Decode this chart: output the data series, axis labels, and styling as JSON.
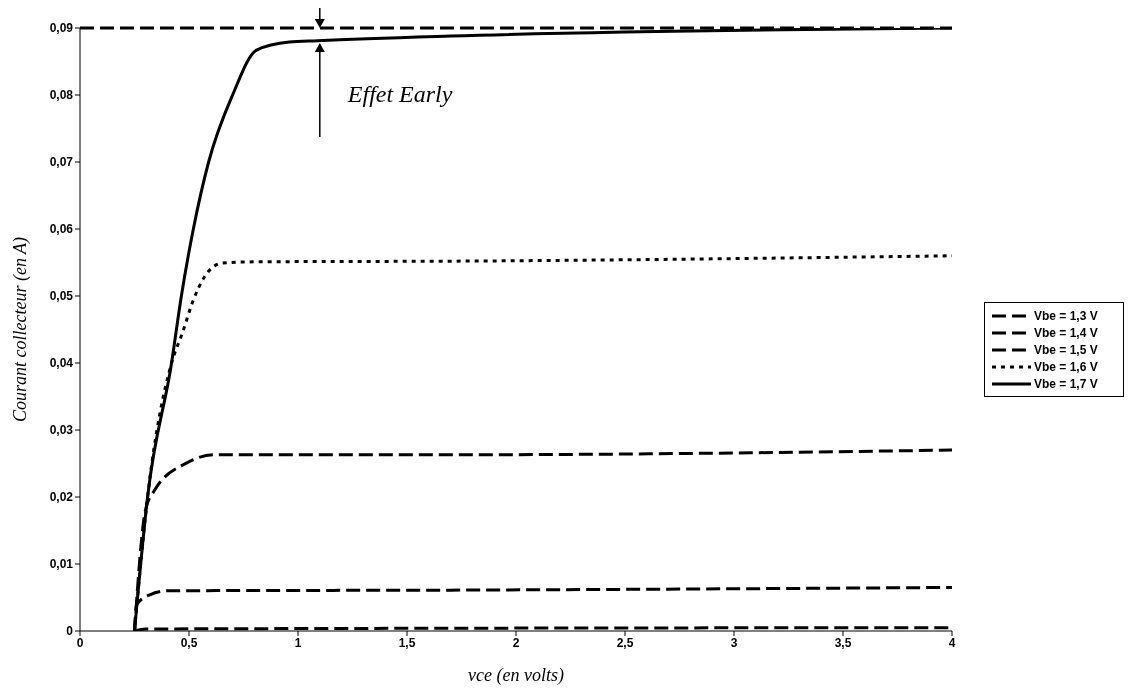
{
  "chart_data": {
    "type": "line",
    "xlabel": "vce (en volts)",
    "ylabel": "Courant collecteur (en A)",
    "xlim": [
      0,
      4
    ],
    "ylim": [
      0,
      0.09
    ],
    "xticks": [
      0,
      {
        "value": 0.5,
        "label": "0,5"
      },
      1,
      {
        "value": 1.5,
        "label": "1,5"
      },
      2,
      {
        "value": 2.5,
        "label": "2,5"
      },
      3,
      {
        "value": 3.5,
        "label": "3,5"
      },
      4
    ],
    "yticks": [
      0,
      {
        "value": 0.01,
        "label": "0,01"
      },
      {
        "value": 0.02,
        "label": "0,02"
      },
      {
        "value": 0.03,
        "label": "0,03"
      },
      {
        "value": 0.04,
        "label": "0,04"
      },
      {
        "value": 0.05,
        "label": "0,05"
      },
      {
        "value": 0.06,
        "label": "0,06"
      },
      {
        "value": 0.07,
        "label": "0,07"
      },
      {
        "value": 0.08,
        "label": "0,08"
      },
      {
        "value": 0.09,
        "label": "0,09"
      }
    ],
    "grid": false,
    "legend": "right",
    "marker": "none",
    "series": [
      {
        "name": "Vbe = 1,3 V",
        "color": "#000000",
        "line_style": "dashed",
        "x": [
          0.25,
          0.3,
          4
        ],
        "values": [
          0,
          0.0003,
          0.0005
        ]
      },
      {
        "name": "Vbe = 1,4 V",
        "color": "#000000",
        "line_style": "dashed",
        "x": [
          0.25,
          0.26,
          0.32,
          0.4,
          1.7,
          4
        ],
        "values": [
          0,
          0.0039,
          0.0054,
          0.006,
          0.0061,
          0.0065
        ]
      },
      {
        "name": "Vbe = 1,5 V",
        "color": "#000000",
        "line_style": "dashed",
        "x": [
          0.25,
          0.3,
          0.34,
          0.49,
          0.62,
          1.7,
          4
        ],
        "values": [
          0,
          0.018,
          0.0209,
          0.0251,
          0.0263,
          0.0263,
          0.027
        ]
      },
      {
        "name": "Vbe = 1,6 V",
        "color": "#000000",
        "line_style": "dotted",
        "x": [
          0.25,
          0.31,
          0.42,
          0.47,
          0.52,
          0.57,
          0.65,
          0.8,
          1.7,
          4
        ],
        "values": [
          0,
          0.02,
          0.04,
          0.0445,
          0.0494,
          0.0528,
          0.0549,
          0.0551,
          0.0552,
          0.056
        ]
      },
      {
        "name": "Vbe = 1,7 V",
        "color": "#000000",
        "line_style": "solid",
        "x": [
          0.25,
          0.31,
          0.42,
          0.465,
          0.52,
          0.59,
          0.7,
          0.81,
          0.96,
          1.09,
          1.7,
          4
        ],
        "values": [
          0,
          0.02,
          0.04,
          0.05,
          0.06,
          0.07,
          0.08,
          0.0867,
          0.0879,
          0.0881,
          0.0888,
          0.09
        ]
      }
    ],
    "ref_lines": [
      {
        "axis": "y",
        "value": 0.09,
        "line_style": "dashed",
        "color": "#000000"
      }
    ],
    "annotations": [
      "Effet Early"
    ]
  }
}
